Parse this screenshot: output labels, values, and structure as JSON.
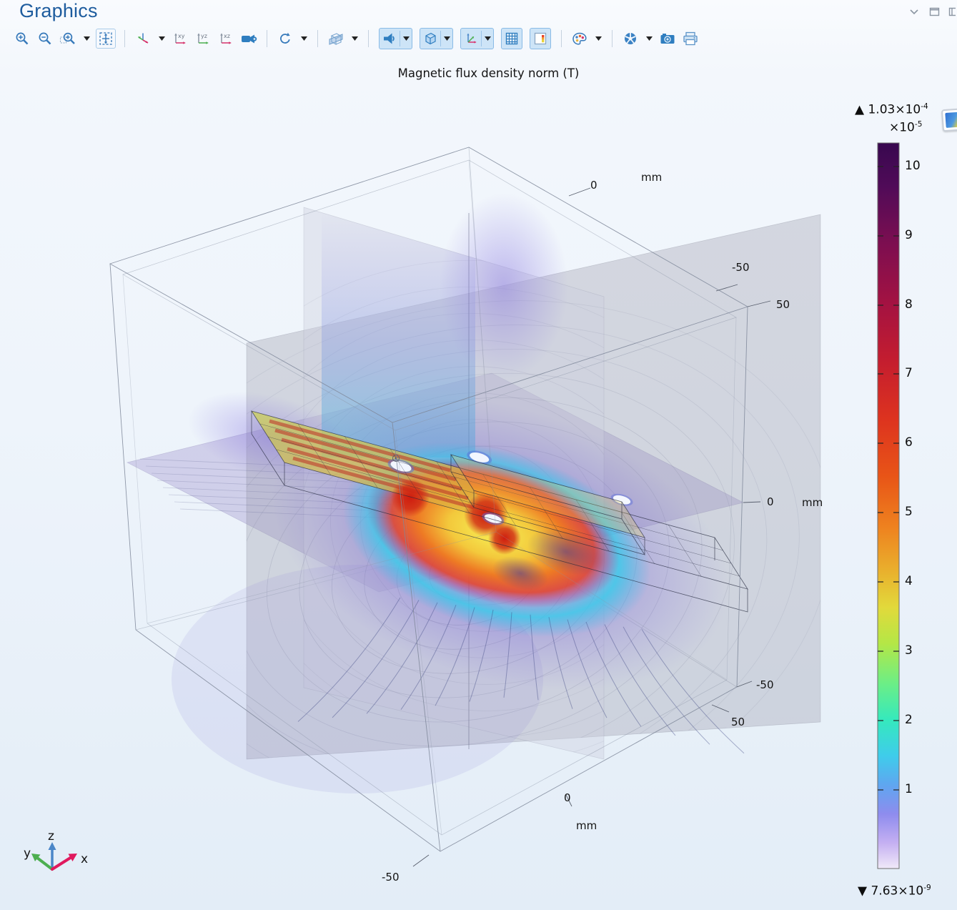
{
  "window": {
    "title": "Graphics",
    "controls": [
      "collapse-panel",
      "maximize-panel",
      "float-panel"
    ]
  },
  "toolbar": {
    "groups": [
      {
        "items": [
          {
            "icon": "zoom-in-icon"
          },
          {
            "icon": "zoom-out-icon"
          },
          {
            "icon": "zoom-box-icon",
            "dropdown": true
          },
          {
            "icon": "zoom-extents-icon",
            "framed": true
          }
        ]
      },
      {
        "items": [
          {
            "icon": "default-3d-view-icon",
            "dropdown": true
          },
          {
            "icon": "view-xy-icon"
          },
          {
            "icon": "view-yz-icon"
          },
          {
            "icon": "view-xz-icon"
          },
          {
            "icon": "projection-icon"
          }
        ]
      },
      {
        "items": [
          {
            "icon": "rotate-icon",
            "dropdown": true
          }
        ]
      },
      {
        "items": [
          {
            "icon": "clip-plane-icon",
            "dropdown": true
          }
        ]
      },
      {
        "items": [
          {
            "icon": "scene-light-icon",
            "dropdown": true,
            "active": true
          },
          {
            "icon": "transparency-icon",
            "dropdown": true,
            "active": true
          },
          {
            "icon": "axis-orientation-icon",
            "dropdown": true,
            "active": true
          },
          {
            "icon": "show-grid-icon",
            "active": true
          },
          {
            "icon": "show-legends-icon",
            "active": true
          }
        ]
      },
      {
        "items": [
          {
            "icon": "color-theme-icon",
            "dropdown": true
          }
        ]
      },
      {
        "items": [
          {
            "icon": "scene-shutter-icon",
            "dropdown": true
          },
          {
            "icon": "image-snapshot-icon"
          },
          {
            "icon": "print-icon"
          }
        ]
      }
    ]
  },
  "plot": {
    "title": "Magnetic flux density norm (T)",
    "axis_labels": {
      "top": {
        "zero": "0",
        "unit": "mm"
      },
      "right_upper": {
        "neg": "-50",
        "pos": "50"
      },
      "right_mid": {
        "zero": "0",
        "unit": "mm"
      },
      "right_lower": {
        "neg": "-50",
        "pos": "50"
      },
      "bottom": {
        "zero": "0",
        "unit": "mm",
        "neg": "-50"
      }
    },
    "triad": {
      "x": "x",
      "y": "y",
      "z": "z"
    }
  },
  "legend": {
    "max_marker": "▲",
    "max_mantissa": "1.03×10",
    "max_exp": "-4",
    "scale_mantissa": "×10",
    "scale_exp": "-5",
    "min_marker": "▼",
    "min_mantissa": "7.63×10",
    "min_exp": "-9",
    "ticks": [
      "10",
      "9",
      "8",
      "7",
      "6",
      "5",
      "4",
      "3",
      "2",
      "1"
    ],
    "colormap": [
      [
        0,
        "#38084f"
      ],
      [
        0.06,
        "#500b58"
      ],
      [
        0.14,
        "#7d0e50"
      ],
      [
        0.22,
        "#a31242"
      ],
      [
        0.3,
        "#c41d2f"
      ],
      [
        0.38,
        "#dd331f"
      ],
      [
        0.46,
        "#e85517"
      ],
      [
        0.53,
        "#ee821f"
      ],
      [
        0.59,
        "#e9b02d"
      ],
      [
        0.64,
        "#e2d93b"
      ],
      [
        0.69,
        "#b4e746"
      ],
      [
        0.745,
        "#6cee86"
      ],
      [
        0.795,
        "#35e9bd"
      ],
      [
        0.845,
        "#3fcceb"
      ],
      [
        0.885,
        "#5fa6f0"
      ],
      [
        0.925,
        "#8e8cee"
      ],
      [
        0.965,
        "#c5b0f2"
      ],
      [
        1,
        "#f0e9f8"
      ]
    ],
    "colors": {
      "accent": "#2a76b8",
      "toggle_fill": "#cde4f7",
      "toggle_border": "#8abbe6"
    }
  }
}
